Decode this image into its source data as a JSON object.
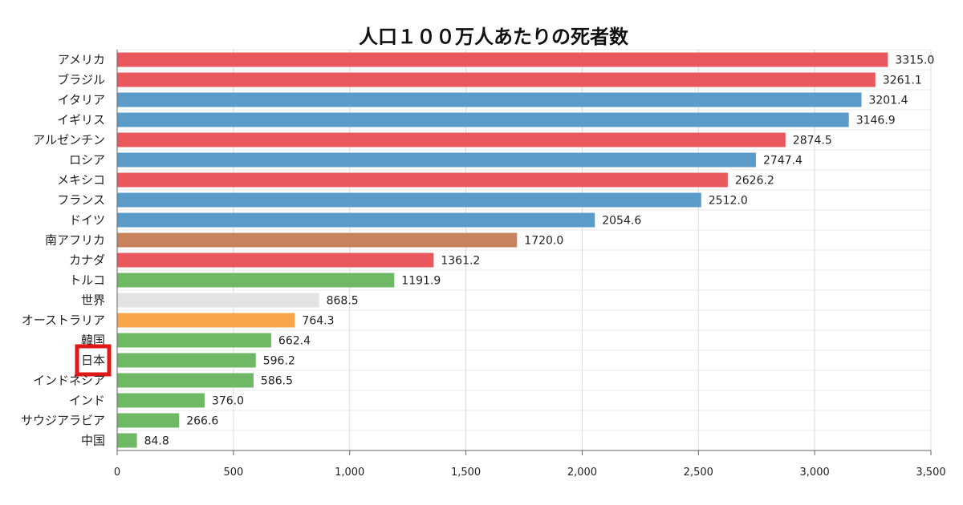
{
  "chart_data": {
    "type": "bar",
    "orientation": "horizontal",
    "title": "人口１００万人あたりの死者数",
    "xlabel": "",
    "ylabel": "",
    "xlim": [
      0,
      3500
    ],
    "x_ticks": [
      0,
      500,
      1000,
      1500,
      2000,
      2500,
      3000,
      3500
    ],
    "x_tick_labels": [
      "0",
      "500",
      "1,000",
      "1,500",
      "2,000",
      "2,500",
      "3,000",
      "3,500"
    ],
    "grid": true,
    "categories": [
      "アメリカ",
      "ブラジル",
      "イタリア",
      "イギリス",
      "アルゼンチン",
      "ロシア",
      "メキシコ",
      "フランス",
      "ドイツ",
      "南アフリカ",
      "カナダ",
      "トルコ",
      "世界",
      "オーストラリア",
      "韓国",
      "日本",
      "インドネシア",
      "インド",
      "サウジアラビア",
      "中国"
    ],
    "values": [
      3315.0,
      3261.1,
      3201.4,
      3146.9,
      2874.5,
      2747.4,
      2626.2,
      2512.0,
      2054.6,
      1720.0,
      1361.2,
      1191.9,
      868.5,
      764.3,
      662.4,
      596.2,
      586.5,
      376.0,
      266.6,
      84.8
    ],
    "value_labels": [
      "3315.0",
      "3261.1",
      "3201.4",
      "3146.9",
      "2874.5",
      "2747.4",
      "2626.2",
      "2512.0",
      "2054.6",
      "1720.0",
      "1361.2",
      "1191.9",
      "868.5",
      "764.3",
      "662.4",
      "596.2",
      "586.5",
      "376.0",
      "266.6",
      "84.8"
    ],
    "colors": [
      "#e8585d",
      "#e8585d",
      "#5b9bc9",
      "#5b9bc9",
      "#e8585d",
      "#5b9bc9",
      "#e8585d",
      "#5b9bc9",
      "#5b9bc9",
      "#c8825e",
      "#e8585d",
      "#6fb866",
      "#e3e3e3",
      "#f9a64a",
      "#6fb866",
      "#6fb866",
      "#6fb866",
      "#6fb866",
      "#6fb866",
      "#6fb866"
    ],
    "highlighted_category": "日本",
    "highlight_color": "#e01818"
  }
}
